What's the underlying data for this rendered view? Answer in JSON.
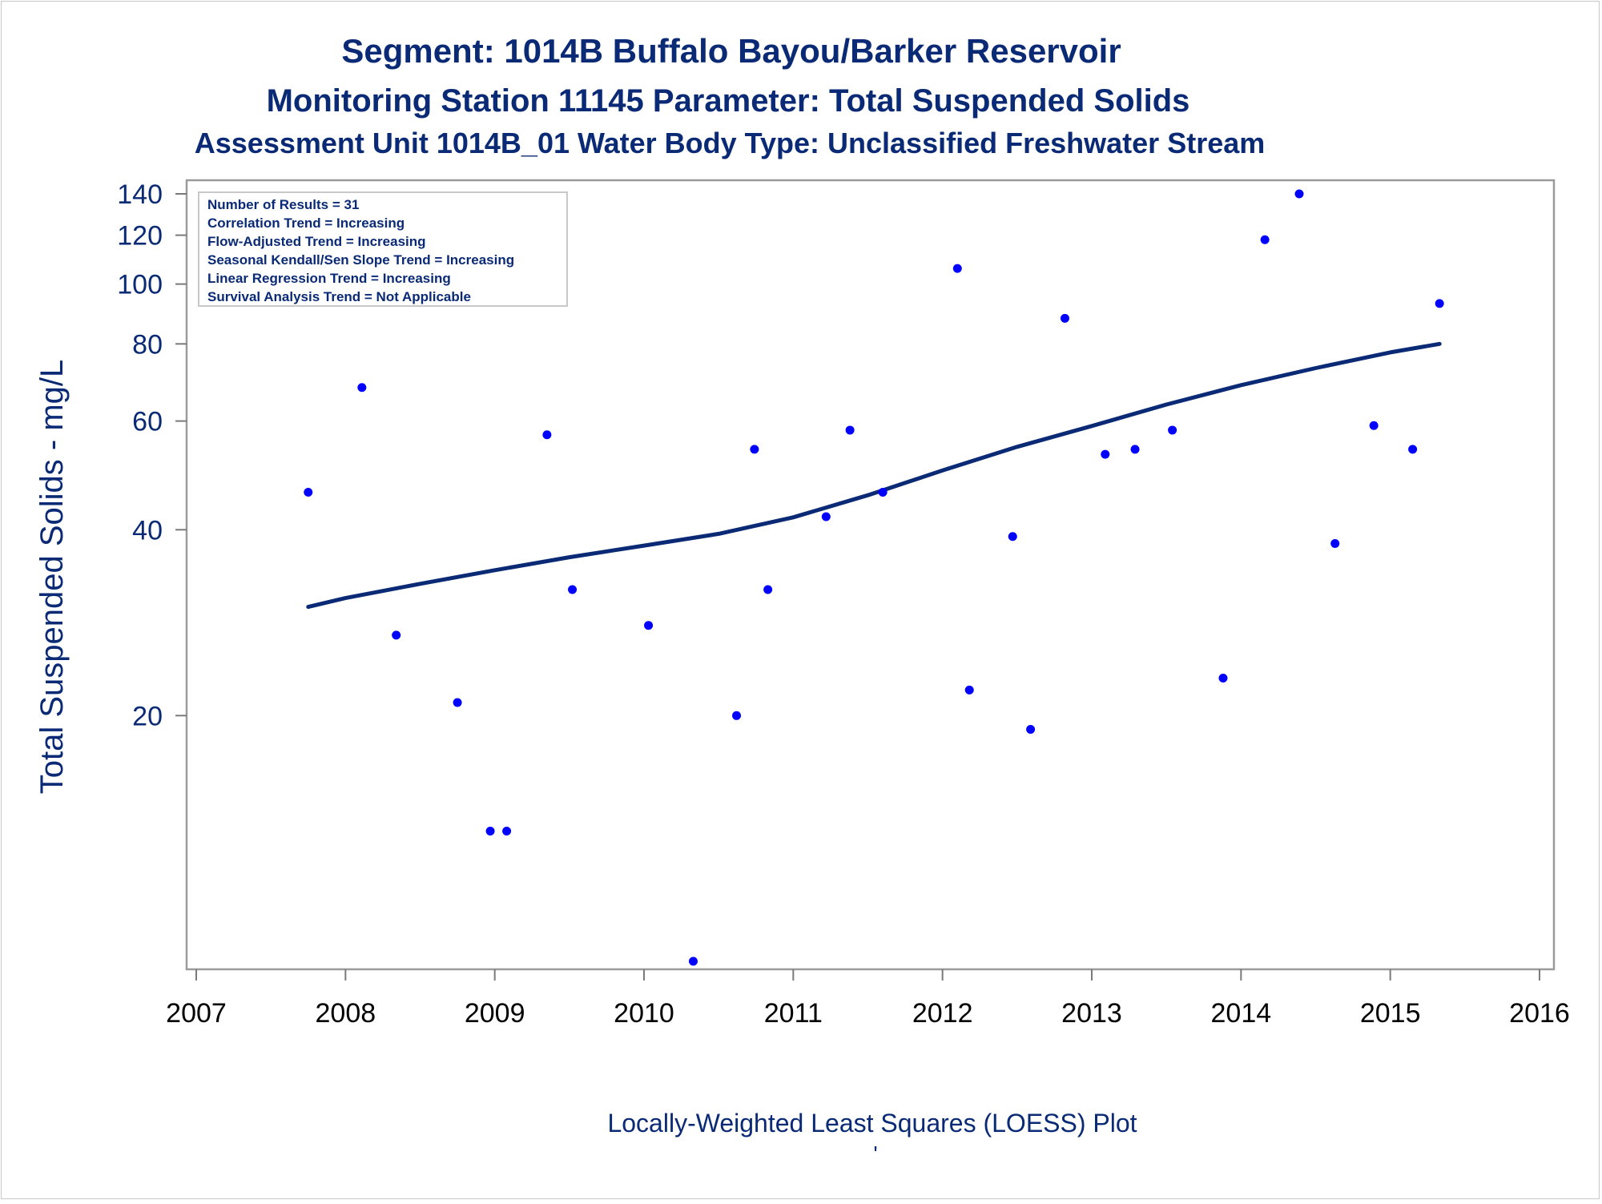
{
  "chart_data": {
    "type": "scatter",
    "title": "Segment: 1014B  Buffalo Bayou/Barker Reservoir",
    "subtitle": "Monitoring Station 11145 Parameter: Total Suspended Solids",
    "subtitle2": "Assessment Unit 1014B_01   Water Body Type: Unclassified Freshwater Stream",
    "ylabel": "Total Suspended Solids - mg/L",
    "footnote": "Locally-Weighted Least Squares (LOESS) Plot",
    "footnote_mark": "'",
    "y_scale": "log",
    "xlim": [
      2007,
      2016
    ],
    "ylim": [
      8,
      140
    ],
    "x_ticks": [
      2007,
      2008,
      2009,
      2010,
      2011,
      2012,
      2013,
      2014,
      2015,
      2016
    ],
    "y_ticks": [
      20,
      40,
      60,
      80,
      100,
      120,
      140
    ],
    "grid": false,
    "legend_placement": "top-left",
    "info_box": [
      "Number of Results = 31",
      "Correlation Trend = Increasing",
      "Flow-Adjusted Trend = Increasing",
      "Seasonal Kendall/Sen Slope Trend = Increasing",
      "Linear Regression Trend = Increasing",
      "Survival Analysis Trend = Not Applicable"
    ],
    "series": [
      {
        "type": "scatter",
        "color": "#0000ff",
        "points": [
          {
            "x": 2007.75,
            "y": 46
          },
          {
            "x": 2008.11,
            "y": 68
          },
          {
            "x": 2008.34,
            "y": 27
          },
          {
            "x": 2008.75,
            "y": 21
          },
          {
            "x": 2008.97,
            "y": 13
          },
          {
            "x": 2009.08,
            "y": 13
          },
          {
            "x": 2009.35,
            "y": 57
          },
          {
            "x": 2009.52,
            "y": 32
          },
          {
            "x": 2010.03,
            "y": 28
          },
          {
            "x": 2010.33,
            "y": 8
          },
          {
            "x": 2010.62,
            "y": 20
          },
          {
            "x": 2010.74,
            "y": 54
          },
          {
            "x": 2010.83,
            "y": 32
          },
          {
            "x": 2011.22,
            "y": 42
          },
          {
            "x": 2011.38,
            "y": 58
          },
          {
            "x": 2011.6,
            "y": 46
          },
          {
            "x": 2012.1,
            "y": 106
          },
          {
            "x": 2012.18,
            "y": 22
          },
          {
            "x": 2012.47,
            "y": 39
          },
          {
            "x": 2012.59,
            "y": 19
          },
          {
            "x": 2012.82,
            "y": 88
          },
          {
            "x": 2013.09,
            "y": 53
          },
          {
            "x": 2013.29,
            "y": 54
          },
          {
            "x": 2013.54,
            "y": 58
          },
          {
            "x": 2013.88,
            "y": 23
          },
          {
            "x": 2014.16,
            "y": 118
          },
          {
            "x": 2014.39,
            "y": 140
          },
          {
            "x": 2014.63,
            "y": 38
          },
          {
            "x": 2014.89,
            "y": 59
          },
          {
            "x": 2015.15,
            "y": 54
          },
          {
            "x": 2015.33,
            "y": 93
          }
        ]
      },
      {
        "type": "line",
        "color": "#0a2a75",
        "points": [
          {
            "x": 2007.75,
            "y": 30
          },
          {
            "x": 2008.0,
            "y": 31
          },
          {
            "x": 2008.5,
            "y": 32.7
          },
          {
            "x": 2009.0,
            "y": 34.4
          },
          {
            "x": 2009.5,
            "y": 36.1
          },
          {
            "x": 2010.0,
            "y": 37.7
          },
          {
            "x": 2010.5,
            "y": 39.4
          },
          {
            "x": 2011.0,
            "y": 41.9
          },
          {
            "x": 2011.5,
            "y": 45.5
          },
          {
            "x": 2012.0,
            "y": 49.9
          },
          {
            "x": 2012.5,
            "y": 54.5
          },
          {
            "x": 2013.0,
            "y": 58.9
          },
          {
            "x": 2013.5,
            "y": 63.8
          },
          {
            "x": 2014.0,
            "y": 68.6
          },
          {
            "x": 2014.5,
            "y": 73.1
          },
          {
            "x": 2015.0,
            "y": 77.5
          },
          {
            "x": 2015.33,
            "y": 80
          }
        ]
      }
    ]
  }
}
